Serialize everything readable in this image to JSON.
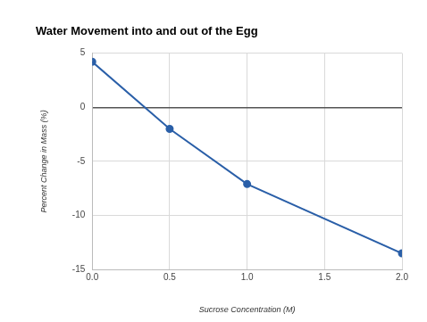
{
  "chart_data": {
    "type": "line",
    "title": "Water Movement into and out of the Egg",
    "x_label": "Sucrose Concentration (M)",
    "y_label": "Percent Change in Mass (%)",
    "x": [
      0,
      0.5,
      1.0,
      2.0
    ],
    "values": [
      4.2,
      -2,
      -7.1,
      -13.5
    ],
    "color": "#2a5fa8",
    "marker": "circle",
    "xlim": [
      0,
      2
    ],
    "xticks": [
      {
        "value": 0,
        "label": "0.0"
      },
      {
        "value": 0.5,
        "label": "0.5"
      },
      {
        "value": 1,
        "label": "1.0"
      },
      {
        "value": 1.5,
        "label": "1.5"
      },
      {
        "value": 2,
        "label": "2.0"
      }
    ],
    "ylim": [
      -15,
      5
    ],
    "yticks": [
      -15,
      -10,
      -5,
      0,
      5
    ],
    "grid": true
  }
}
